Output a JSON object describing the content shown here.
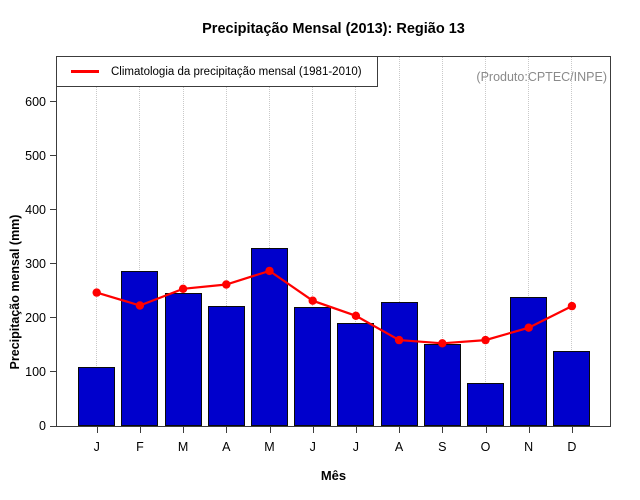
{
  "title": "Precipitação Mensal (2013): Região 13",
  "annotation": {
    "produto": "(Produto:CPTEC/INPE)"
  },
  "legend": {
    "label": "Climatologia da precipitação mensal (1981-2010)"
  },
  "axes": {
    "ylabel": "Precipitação mensal (mm)",
    "xlabel": "Mês"
  },
  "chart_data": {
    "type": "bar",
    "title": "Precipitação Mensal (2013): Região 13",
    "categories": [
      "J",
      "F",
      "M",
      "A",
      "M",
      "J",
      "J",
      "A",
      "S",
      "O",
      "N",
      "D"
    ],
    "series": [
      {
        "name": "2013",
        "type": "bar",
        "color": "#0000CC",
        "values": [
          110,
          287,
          247,
          222,
          330,
          220,
          191,
          229,
          151,
          80,
          239,
          139
        ]
      },
      {
        "name": "Climatologia da precipitação mensal (1981-2010)",
        "type": "line",
        "color": "#FF0000",
        "values": [
          247,
          223,
          254,
          262,
          287,
          232,
          204,
          159,
          153,
          159,
          182,
          222
        ]
      }
    ],
    "xlabel": "Mês",
    "ylabel": "Precipitação mensal (mm)",
    "yticks": [
      0,
      100,
      200,
      300,
      400,
      500,
      600
    ],
    "ylim": [
      0,
      683
    ],
    "grid": "vertical-dotted",
    "legend_position": "top-left",
    "annotation": "(Produto:CPTEC/INPE)"
  },
  "colors": {
    "bar_fill": "#0000CC",
    "bar_border": "#0A0A0A",
    "line": "#FF0000",
    "grid": "#C9C9C9",
    "axis": "#3C3C3C",
    "annotation_text": "#8A8A8A"
  }
}
